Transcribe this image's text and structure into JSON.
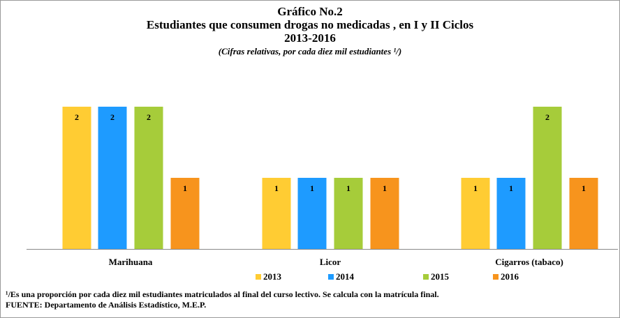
{
  "chart_data": {
    "type": "bar",
    "title": [
      "Gráfico No.2",
      "Estudiantes que consumen drogas no medicadas , en I y II Ciclos",
      "2013-2016"
    ],
    "subtitle": "(Cifras relativas,  por cada diez mil estudiantes ¹/)",
    "categories": [
      "Marihuana",
      "Licor",
      "Cigarros (tabaco)"
    ],
    "series": [
      {
        "name": "2013",
        "color": "#ffcc33",
        "values": [
          2,
          1,
          1
        ]
      },
      {
        "name": "2014",
        "color": "#1e9bff",
        "values": [
          2,
          1,
          1
        ]
      },
      {
        "name": "2015",
        "color": "#a6cc3a",
        "values": [
          2,
          1,
          2
        ]
      },
      {
        "name": "2016",
        "color": "#f7941d",
        "values": [
          1,
          1,
          1
        ]
      }
    ],
    "notes": [
      "¹/Es una proporción  por cada diez mil estudiantes matriculados al final del curso lectivo. Se calcula con la matrícula final.",
      "FUENTE:  Departamento de Análisis Estadístico, M.E.P."
    ]
  }
}
